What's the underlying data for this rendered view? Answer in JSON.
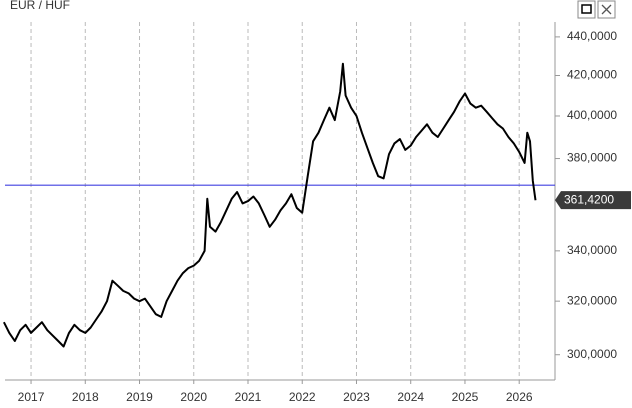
{
  "chart_data": {
    "type": "line",
    "title": "EUR / HUF",
    "x": [
      2016.5,
      2016.6,
      2016.7,
      2016.8,
      2016.9,
      2017.0,
      2017.1,
      2017.2,
      2017.3,
      2017.4,
      2017.5,
      2017.6,
      2017.7,
      2017.8,
      2017.9,
      2018.0,
      2018.1,
      2018.2,
      2018.3,
      2018.4,
      2018.5,
      2018.6,
      2018.7,
      2018.8,
      2018.9,
      2019.0,
      2019.1,
      2019.2,
      2019.3,
      2019.4,
      2019.5,
      2019.6,
      2019.7,
      2019.8,
      2019.9,
      2020.0,
      2020.1,
      2020.2,
      2020.25,
      2020.3,
      2020.4,
      2020.5,
      2020.6,
      2020.7,
      2020.8,
      2020.9,
      2021.0,
      2021.1,
      2021.2,
      2021.3,
      2021.4,
      2021.5,
      2021.6,
      2021.7,
      2021.8,
      2021.9,
      2022.0,
      2022.1,
      2022.2,
      2022.3,
      2022.4,
      2022.5,
      2022.6,
      2022.7,
      2022.75,
      2022.8,
      2022.9,
      2023.0,
      2023.1,
      2023.2,
      2023.3,
      2023.4,
      2023.5,
      2023.6,
      2023.7,
      2023.8,
      2023.9,
      2024.0,
      2024.1,
      2024.2,
      2024.3,
      2024.4,
      2024.5,
      2024.6,
      2024.7,
      2024.8,
      2024.9,
      2025.0,
      2025.1,
      2025.2,
      2025.3,
      2025.4,
      2025.5,
      2025.6,
      2025.7,
      2025.8,
      2025.9,
      2026.0,
      2026.1,
      2026.15,
      2026.2,
      2026.25,
      2026.3
    ],
    "values": [
      312,
      308,
      305,
      309,
      311,
      308,
      310,
      312,
      309,
      307,
      305,
      303,
      308,
      311,
      309,
      308,
      310,
      313,
      316,
      320,
      328,
      326,
      324,
      323,
      321,
      320,
      321,
      318,
      315,
      314,
      320,
      324,
      328,
      331,
      333,
      334,
      336,
      340,
      362,
      350,
      348,
      352,
      357,
      362,
      365,
      360,
      361,
      363,
      360,
      355,
      350,
      353,
      357,
      360,
      364,
      358,
      356,
      372,
      388,
      392,
      398,
      404,
      398,
      412,
      426,
      410,
      404,
      400,
      392,
      385,
      378,
      372,
      371,
      382,
      387,
      389,
      384,
      386,
      390,
      393,
      396,
      392,
      390,
      394,
      398,
      402,
      407,
      411,
      406,
      404,
      405,
      402,
      399,
      396,
      394,
      390,
      387,
      383,
      378,
      392,
      388,
      370,
      361.42
    ],
    "color": "#000000",
    "ylim": [
      291,
      460
    ],
    "log_scale": true,
    "yticks": [
      {
        "value": 300,
        "label": "300,0000"
      },
      {
        "value": 320,
        "label": "320,0000"
      },
      {
        "value": 340,
        "label": "340,0000"
      },
      {
        "value": 380,
        "label": "380,0000"
      },
      {
        "value": 400,
        "label": "400,0000"
      },
      {
        "value": 420,
        "label": "420,0000"
      },
      {
        "value": 440,
        "label": "440,0000"
      }
    ],
    "xlim": [
      2016.52,
      2026.66
    ],
    "xticks": [
      2017,
      2018,
      2019,
      2020,
      2021,
      2022,
      2023,
      2024,
      2025,
      2026
    ],
    "grid": true,
    "reference_line": {
      "value": 368,
      "color": "#4040e0"
    },
    "last_price": {
      "value": 361.42,
      "label": "361,4200"
    }
  }
}
